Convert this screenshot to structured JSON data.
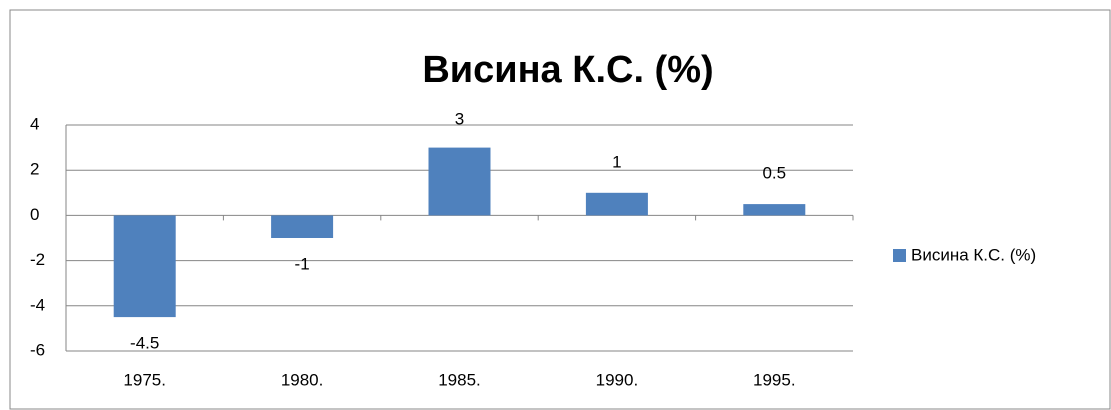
{
  "chart_data": {
    "type": "bar",
    "title": "Висина К.С. (%)",
    "categories": [
      "1975.",
      "1980.",
      "1985.",
      "1990.",
      "1995."
    ],
    "series": [
      {
        "name": "Висина К.С. (%)",
        "color": "#4f81bd",
        "values": [
          -4.5,
          -1,
          3,
          1,
          0.5
        ]
      }
    ],
    "ylim": [
      -6,
      4
    ],
    "yticks": [
      -6,
      -4,
      -2,
      0,
      2,
      4
    ],
    "grid": true,
    "legend": "right"
  }
}
